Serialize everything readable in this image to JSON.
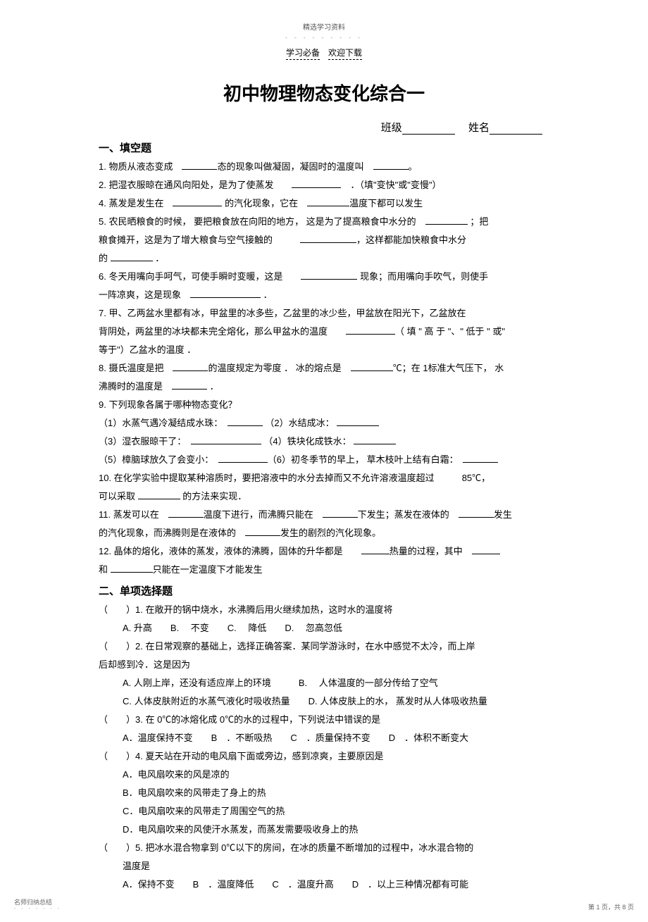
{
  "top_note": "精选学习资料",
  "dots": "- - - - - - - - -",
  "header": {
    "left": "学习必备",
    "right": "欢迎下载"
  },
  "title": "初中物理物态变化综合一",
  "class_label": "班级",
  "name_label": "姓名",
  "section1": "一、填空题",
  "fill": {
    "q1": "1. 物质从液态变成",
    "q1b": "态的现象叫做凝固，凝固时的温度叫",
    "q1c": "。",
    "q2": "2. 把湿衣服晾在通风向阳处，是为了使蒸发",
    "q2b": "．（填\"变快\"或\"变慢\"）",
    "q4": "4. 蒸发是发生在",
    "q4b": "的汽化现象，它在",
    "q4c": "温度下都可以发生",
    "q5a": "5. 农民晒粮食的时候，   要把粮食放在向阳的地方，   这是为了提高粮食中水分的",
    "q5b": "；把",
    "q5c": "粮食摊开，这是为了增大粮食与空气接触的",
    "q5d": "，这样都能加快粮食中水分",
    "q5e": "的",
    "q5f": "．",
    "q6a": "6. 冬天用嘴向手呵气，可使手瞬时变暖，这是",
    "q6b": "现象；而用嘴向手吹气，则使手",
    "q6c": "一阵凉爽，这是现象",
    "q6d": "．",
    "q7a": "7. 甲、乙两盆水里都有冰，甲盆里的冰多些，乙盆里的冰少些，甲盆放在阳光下，乙盆放在",
    "q7b": "背阴处，两盆里的冰块都未完全熔化，那么甲盆水的温度",
    "q7c": "（ 填 \" 高 于 \"、\" 低于 \" 或\"",
    "q7d": "等于\"）乙盆水的温度  ．",
    "q8a": "8. 摄氏温度是把",
    "q8b": "的温度规定为零度 ．  冰的熔点是",
    "q8c": "℃；在 1标准大气压下，  水",
    "q8d": "沸腾时的温度是",
    "q8e": "．",
    "q9": "9. 下列现象各属于哪种物态变化？",
    "q9_1a": "（1）水蒸气遇冷凝结成水珠：",
    "q9_1b": "（2）水结成冰：",
    "q9_3a": "（3）湿衣服晾干了：",
    "q9_3b": "（4）铁块化成铁水：",
    "q9_5a": "（5）樟脑球放久了会变小：",
    "q9_5b": "（6）初冬季节的早上，  草木枝叶上结有白霜：",
    "q10a": "10. 在化学实验中提取某种溶质时，要把溶液中的水分去掉而又不允许溶液温度超过",
    "q10b": "85℃，",
    "q10c": "可以采取",
    "q10d": "的方法来实现．",
    "q11a": "11. 蒸发可以在",
    "q11b": "温度下进行，而沸腾只能在",
    "q11c": "下发生；蒸发在液体的",
    "q11d": "发生",
    "q11e": "的汽化现象，而沸腾则是在液体的",
    "q11f": "发生的剧烈的汽化现象。",
    "q12a": "12. 晶体的熔化，液体的蒸发，液体的沸腾，固体的升华都是",
    "q12b": "热量的过程，其中",
    "q12c": "和",
    "q12d": "只能在一定温度下才能发生"
  },
  "section2": "二、单项选择题",
  "choice": {
    "q1": "（　　）1. 在敞开的锅中烧水，水沸腾后用火继续加热，这时水的温度将",
    "q1opts": "A. 升高　　B.　 不变　　C.　 降低　　D.　 忽高忽低",
    "q2": "（　　）2. 在日常观察的基础上，选择正确答案．某同学游泳时，在水中感觉不太冷，而上岸",
    "q2b": "后却感到冷．这是因为",
    "q2optsA": "A. 人刚上岸，还没有适应岸上的环境　　　B.　 人体温度的一部分传给了空气",
    "q2optsC": "C. 人体皮肤附近的水蒸气液化时吸收热量　　D.  人体皮肤上的水，  蒸发时从人体吸收热量",
    "q3": "（　　）3. 在 0℃的冰熔化成  0℃的水的过程中，下列说法中错误的是",
    "q3opts": "A．温度保持不变　　B　．不断吸热　　C　．质量保持不变　　D　．体积不断变大",
    "q4": "（　　）4. 夏天站在开动的电风扇下面或旁边，感到凉爽，主要原因是",
    "q4a": "A．电风扇吹来的风是凉的",
    "q4b": "B．电风扇吹来的风带走了身上的热",
    "q4c": "C．电风扇吹来的风带走了周围空气的热",
    "q4d": "D．电风扇吹来的风使汗水蒸发，而蒸发需要吸收身上的热",
    "q5": "（　　）5. 把冰水混合物拿到   0℃以下的房间，在冰的质量不断增加的过程中，冰水混合物的",
    "q5b": "温度是",
    "q5opts": "A．保持不变　　B　．温度降低　　C　．温度升高　　D　．以上三种情况都有可能"
  },
  "footer": {
    "left": "名师归纳总结",
    "dots": "- - - - - - -",
    "right": "第 1 页，共 8 页"
  }
}
